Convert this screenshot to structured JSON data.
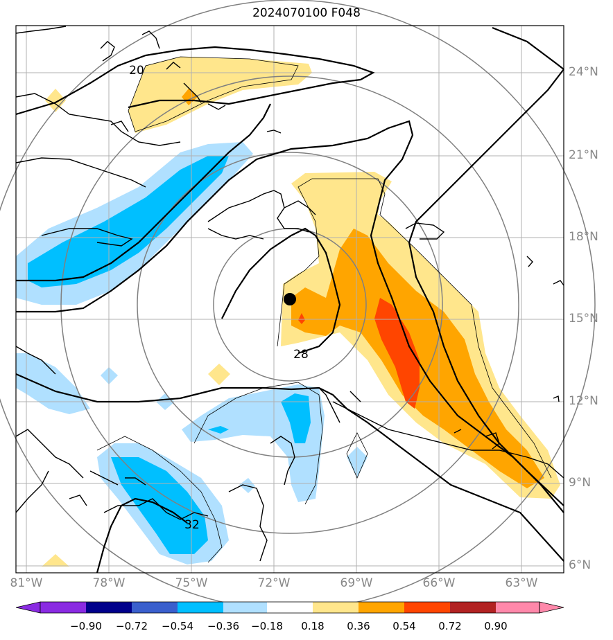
{
  "title": "2024070100 F048",
  "lon_labels": [
    "81°W",
    "78°W",
    "75°W",
    "72°W",
    "69°W",
    "66°W",
    "63°W"
  ],
  "lat_labels": [
    "24°N",
    "21°N",
    "18°N",
    "15°N",
    "12°N",
    "9°N",
    "6°N"
  ],
  "contour_labels": [
    "20",
    "28",
    "32"
  ],
  "colorbar": {
    "ticks": [
      "−0.90",
      "−0.72",
      "−0.54",
      "−0.36",
      "−0.18",
      "0.18",
      "0.36",
      "0.54",
      "0.72",
      "0.90"
    ],
    "colors": [
      "#8a2be2",
      "#00008b",
      "#3a5fcd",
      "#00bfff",
      "#b0e0ff",
      "#ffffff",
      "#ffe68c",
      "#ffa500",
      "#ff4500",
      "#b22222",
      "#ff88aa"
    ]
  },
  "center_marker": "storm-center-dot"
}
